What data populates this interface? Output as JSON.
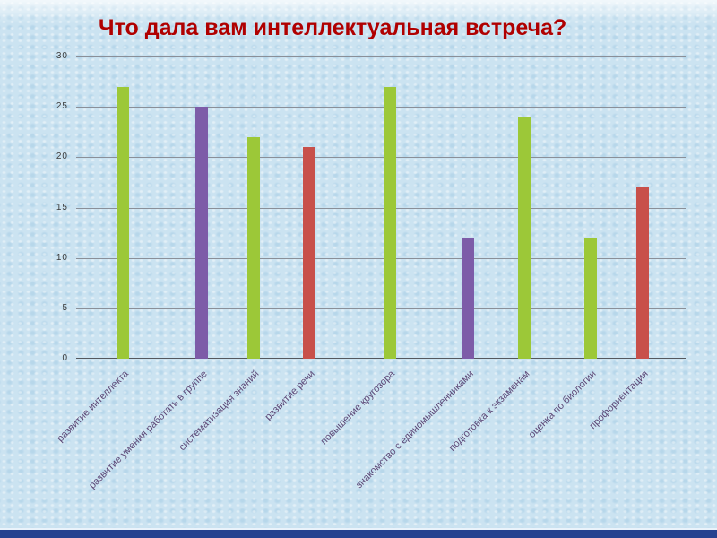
{
  "slide": {
    "title": "Что дала вам интеллектуальная встреча?",
    "title_color": "#b00000"
  },
  "chart_data": {
    "type": "bar",
    "title": "Что дала вам интеллектуальная встреча?",
    "categories": [
      "развитие интеллекта",
      "развитие умения работать в группе",
      "систематизация знаний",
      "развитие речи",
      "повышение кругозора",
      "знакомство с единомышленниками",
      "подготовка к экзаменам",
      "оценка по биологии",
      "профориентация"
    ],
    "values": [
      27,
      25,
      22,
      21,
      27,
      12,
      24,
      12,
      17
    ],
    "bar_colors": [
      "#9cc838",
      "#7d5ca8",
      "#9cc838",
      "#c8504a",
      "#9cc838",
      "#7d5ca8",
      "#9cc838",
      "#9cc838",
      "#c8504a"
    ],
    "xlabel": "",
    "ylabel": "",
    "ylim": [
      0,
      30
    ],
    "yticks": [
      0,
      5,
      10,
      15,
      20,
      25,
      30
    ],
    "grid": true,
    "legend": "none"
  },
  "colors": {
    "background": "#cbe3f1",
    "title": "#b00000",
    "green_bar": "#9cc838",
    "purple_bar": "#7d5ca8",
    "red_bar": "#c8504a",
    "gridline": "#8a8f98",
    "category_label": "#5c4776",
    "bottom_bar": "#26418f"
  }
}
